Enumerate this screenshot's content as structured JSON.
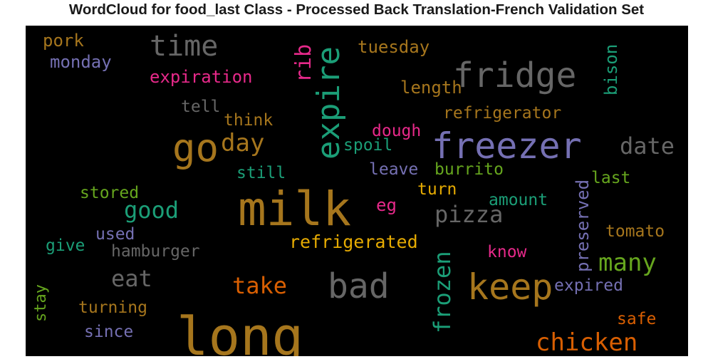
{
  "chart_data": {
    "type": "wordcloud",
    "title": "WordCloud for food_last Class - Processed Back Translation-French Validation Set",
    "background": "#000000",
    "palette": [
      "#1b9e77",
      "#d95f02",
      "#7570b3",
      "#e7298a",
      "#66a61e",
      "#e6ab02",
      "#a6761d",
      "#666666"
    ],
    "words": [
      {
        "text": "milk",
        "color": "#a6761d"
      },
      {
        "text": "long",
        "color": "#a6761d"
      },
      {
        "text": "freezer",
        "color": "#7570b3"
      },
      {
        "text": "expire",
        "color": "#1b9e77"
      },
      {
        "text": "fridge",
        "color": "#666666"
      },
      {
        "text": "keep",
        "color": "#a6761d"
      },
      {
        "text": "go",
        "color": "#a6761d"
      },
      {
        "text": "bad",
        "color": "#666666"
      },
      {
        "text": "time",
        "color": "#666666"
      },
      {
        "text": "frozen",
        "color": "#1b9e77"
      },
      {
        "text": "chicken",
        "color": "#d95f02"
      },
      {
        "text": "pizza",
        "color": "#666666"
      },
      {
        "text": "good",
        "color": "#1b9e77"
      },
      {
        "text": "date",
        "color": "#666666"
      },
      {
        "text": "many",
        "color": "#66a61e"
      },
      {
        "text": "day",
        "color": "#a6761d"
      },
      {
        "text": "take",
        "color": "#d95f02"
      },
      {
        "text": "eat",
        "color": "#666666"
      },
      {
        "text": "rib",
        "color": "#e7298a"
      },
      {
        "text": "preserved",
        "color": "#7570b3"
      },
      {
        "text": "refrigerated",
        "color": "#e6ab02"
      },
      {
        "text": "expiration",
        "color": "#e7298a"
      },
      {
        "text": "refrigerator",
        "color": "#a6761d"
      },
      {
        "text": "length",
        "color": "#a6761d"
      },
      {
        "text": "tuesday",
        "color": "#a6761d"
      },
      {
        "text": "bison",
        "color": "#1b9e77"
      },
      {
        "text": "monday",
        "color": "#7570b3"
      },
      {
        "text": "pork",
        "color": "#a6761d"
      },
      {
        "text": "tell",
        "color": "#666666"
      },
      {
        "text": "think",
        "color": "#a6761d"
      },
      {
        "text": "dough",
        "color": "#e7298a"
      },
      {
        "text": "spoil",
        "color": "#1b9e77"
      },
      {
        "text": "still",
        "color": "#1b9e77"
      },
      {
        "text": "leave",
        "color": "#7570b3"
      },
      {
        "text": "burrito",
        "color": "#66a61e"
      },
      {
        "text": "last",
        "color": "#66a61e"
      },
      {
        "text": "turn",
        "color": "#e6ab02"
      },
      {
        "text": "amount",
        "color": "#1b9e77"
      },
      {
        "text": "stored",
        "color": "#66a61e"
      },
      {
        "text": "eg",
        "color": "#e7298a"
      },
      {
        "text": "used",
        "color": "#7570b3"
      },
      {
        "text": "give",
        "color": "#1b9e77"
      },
      {
        "text": "hamburger",
        "color": "#666666"
      },
      {
        "text": "tomato",
        "color": "#a6761d"
      },
      {
        "text": "know",
        "color": "#e7298a"
      },
      {
        "text": "expired",
        "color": "#7570b3"
      },
      {
        "text": "turning",
        "color": "#a6761d"
      },
      {
        "text": "stay",
        "color": "#66a61e"
      },
      {
        "text": "since",
        "color": "#7570b3"
      },
      {
        "text": "safe",
        "color": "#d95f02"
      }
    ]
  }
}
